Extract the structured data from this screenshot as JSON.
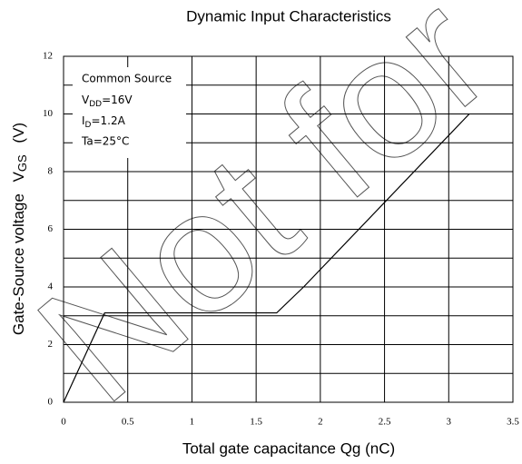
{
  "chart_data": {
    "type": "line",
    "title": "Dynamic Input Characteristics",
    "xlabel": "Total gate capacitance   Qg   (nC)",
    "ylabel": "Gate-Source voltage",
    "ylabel_symbol": "V",
    "ylabel_sub": "GS",
    "ylabel_unit": "(V)",
    "annotation": [
      "Common Source",
      [
        "V",
        "DD",
        "=16V"
      ],
      [
        "I",
        "D",
        "=1.2A"
      ],
      "Ta=25°C"
    ],
    "watermark": "Not for",
    "x": [
      0,
      0.32,
      1.66,
      1.87,
      3.16
    ],
    "values": [
      0,
      3.1,
      3.1,
      4.0,
      10.0
    ],
    "color": "#000000",
    "xlim": [
      0,
      3.5
    ],
    "xticks": [
      0,
      0.5,
      1,
      1.5,
      2,
      2.5,
      3,
      3.5
    ],
    "ylim": [
      0,
      12
    ],
    "yticks": [
      0,
      2,
      4,
      6,
      8,
      10,
      12
    ],
    "yminor": [
      1,
      3,
      5,
      7,
      9,
      11
    ],
    "grid": true
  }
}
